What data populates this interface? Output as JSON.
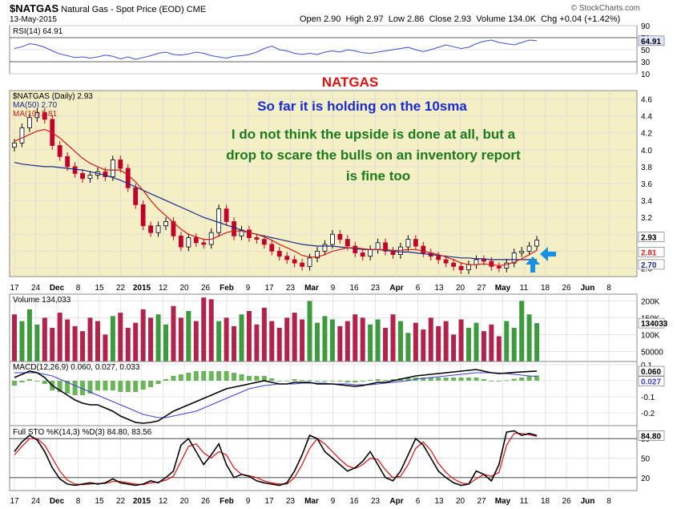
{
  "header": {
    "symbol": "$NATGAS",
    "name": "Natural Gas - Spot Price (EOD)",
    "exchange": "CME",
    "date": "13-May-2015",
    "brand": "© StockCharts.com",
    "open_label": "Open",
    "open": "2.90",
    "high_label": "High",
    "high": "2.97",
    "low_label": "Low",
    "low": "2.86",
    "close_label": "Close",
    "close": "2.93",
    "volume_label": "Volume",
    "volume": "134.0K",
    "chg_label": "Chg",
    "chg": "+0.04 (+1.42%)"
  },
  "annotations": {
    "title": "NATGAS",
    "line1": "So far it is holding on the 10sma",
    "line2": "I do not think the upside is done at all, but a",
    "line3": "drop to scare the bulls on an inventory report",
    "line4": "is fine too"
  },
  "colors": {
    "rsi_line": "#3a52c8",
    "price_up": "#000000",
    "price_down": "#c0002a",
    "ma50": "#1c2a8c",
    "ma10": "#d11a1a",
    "vol_up": "#3e9a3e",
    "vol_down": "#b0234a",
    "macd": "#000000",
    "macd_signal": "#4040d0",
    "macd_hist": "#6ab45a",
    "sto_k": "#000000",
    "sto_d": "#e01010",
    "arrow": "#1b8fe0",
    "price_bg": "#f4efc4"
  },
  "chart_data": [
    {
      "type": "line",
      "panel": "rsi",
      "legend": "RSI(14) 64.91",
      "y_ticks": [
        "90",
        "70",
        "50",
        "30",
        "10"
      ],
      "last_value_label": "64.91",
      "ylim": [
        10,
        90
      ],
      "reference_lines": [
        70,
        30
      ],
      "values": [
        52,
        55,
        60,
        58,
        54,
        48,
        43,
        40,
        37,
        38,
        36,
        38,
        41,
        39,
        35,
        38,
        34,
        37,
        40,
        44,
        46,
        42,
        41,
        43,
        46,
        44,
        40,
        38,
        36,
        39,
        40,
        42,
        46,
        52,
        56,
        50,
        48,
        44,
        42,
        44,
        42,
        46,
        48,
        46,
        50,
        48,
        45,
        44,
        46,
        48,
        50,
        52,
        54,
        50,
        47,
        50,
        54,
        58,
        55,
        52,
        54,
        60,
        64,
        66,
        62,
        60,
        58,
        62,
        66,
        64.91
      ]
    },
    {
      "type": "candlestick",
      "panel": "price",
      "legend": [
        {
          "name": "$NATGAS (Daily) 2.93"
        },
        {
          "name": "MA(50) 2.70"
        },
        {
          "name": "MA(10) 2.81"
        }
      ],
      "y_ticks": [
        "4.6",
        "4.4",
        "4.2",
        "4.0",
        "3.8",
        "3.6",
        "3.4",
        "3.2",
        "3.0",
        "2.8",
        "2.6"
      ],
      "last_value_labels": [
        "2.93",
        "2.81",
        "2.70"
      ],
      "ylim": [
        2.5,
        4.7
      ],
      "x_ticks": [
        "17",
        "24",
        "Dec",
        "8",
        "15",
        "22",
        "2015",
        "12",
        "20",
        "26",
        "Feb",
        "9",
        "17",
        "23",
        "Mar",
        "9",
        "16",
        "23",
        "Apr",
        "6",
        "13",
        "20",
        "27",
        "May",
        "11",
        "18",
        "26",
        "Jun",
        "8"
      ],
      "close": [
        4.08,
        4.26,
        4.38,
        4.44,
        4.36,
        4.05,
        3.92,
        3.8,
        3.72,
        3.66,
        3.7,
        3.74,
        3.68,
        3.88,
        3.78,
        3.55,
        3.35,
        3.1,
        3.02,
        3.1,
        3.15,
        2.98,
        2.85,
        2.96,
        2.9,
        2.88,
        3.02,
        3.3,
        3.15,
        2.98,
        3.05,
        2.96,
        2.94,
        2.88,
        2.8,
        2.74,
        2.7,
        2.66,
        2.62,
        2.72,
        2.8,
        2.88,
        3.0,
        2.94,
        2.86,
        2.78,
        2.74,
        2.82,
        2.9,
        2.8,
        2.76,
        2.85,
        2.94,
        2.86,
        2.78,
        2.74,
        2.7,
        2.66,
        2.62,
        2.58,
        2.64,
        2.7,
        2.68,
        2.62,
        2.6,
        2.66,
        2.78,
        2.8,
        2.86,
        2.93
      ],
      "ma50": [
        3.85,
        3.83,
        3.82,
        3.81,
        3.8,
        3.8,
        3.79,
        3.78,
        3.77,
        3.76,
        3.74,
        3.72,
        3.7,
        3.67,
        3.64,
        3.6,
        3.56,
        3.52,
        3.48,
        3.44,
        3.4,
        3.36,
        3.32,
        3.28,
        3.24,
        3.2,
        3.17,
        3.14,
        3.11,
        3.08,
        3.05,
        3.02,
        3.0,
        2.98,
        2.96,
        2.94,
        2.92,
        2.9,
        2.88,
        2.87,
        2.86,
        2.86,
        2.86,
        2.85,
        2.84,
        2.83,
        2.82,
        2.82,
        2.82,
        2.81,
        2.8,
        2.79,
        2.79,
        2.78,
        2.77,
        2.76,
        2.75,
        2.74,
        2.73,
        2.72,
        2.72,
        2.71,
        2.71,
        2.7,
        2.7,
        2.7,
        2.7,
        2.7,
        2.7,
        2.7
      ],
      "ma10": [
        4.1,
        4.14,
        4.18,
        4.22,
        4.24,
        4.2,
        4.14,
        4.06,
        3.98,
        3.9,
        3.84,
        3.8,
        3.76,
        3.76,
        3.76,
        3.7,
        3.62,
        3.52,
        3.4,
        3.3,
        3.22,
        3.14,
        3.06,
        3.0,
        2.97,
        2.94,
        2.94,
        2.98,
        3.02,
        3.04,
        3.04,
        3.02,
        3.0,
        2.97,
        2.93,
        2.88,
        2.84,
        2.8,
        2.75,
        2.73,
        2.73,
        2.76,
        2.8,
        2.82,
        2.84,
        2.84,
        2.83,
        2.82,
        2.82,
        2.82,
        2.81,
        2.81,
        2.82,
        2.82,
        2.8,
        2.78,
        2.76,
        2.73,
        2.7,
        2.66,
        2.64,
        2.64,
        2.65,
        2.64,
        2.63,
        2.64,
        2.67,
        2.71,
        2.76,
        2.81
      ]
    },
    {
      "type": "bar",
      "panel": "volume",
      "legend": "Volume 134,033",
      "y_ticks": [
        "200K",
        "150K",
        "100K",
        "50000"
      ],
      "last_value_label": "134033",
      "ylim": [
        20000,
        220000
      ],
      "values": [
        160000,
        140000,
        175000,
        130000,
        150000,
        120000,
        165000,
        145000,
        125000,
        110000,
        150000,
        140000,
        100000,
        155000,
        165000,
        120000,
        135000,
        175000,
        150000,
        160000,
        130000,
        185000,
        150000,
        170000,
        140000,
        210000,
        205000,
        140000,
        150000,
        125000,
        160000,
        170000,
        130000,
        180000,
        140000,
        120000,
        150000,
        165000,
        145000,
        200000,
        135000,
        155000,
        145000,
        125000,
        140000,
        160000,
        150000,
        130000,
        145000,
        120000,
        160000,
        140000,
        105000,
        135000,
        115000,
        150000,
        125000,
        140000,
        100000,
        145000,
        120000,
        135000,
        110000,
        130000,
        95000,
        140000,
        120000,
        200000,
        160000,
        134033
      ],
      "up_days": [
        1,
        2,
        3,
        13,
        19,
        20,
        23,
        27,
        30,
        39,
        40,
        41,
        42,
        47,
        48,
        51,
        52,
        60,
        61,
        65,
        66,
        67,
        68,
        69
      ]
    },
    {
      "type": "line",
      "panel": "macd",
      "legend": "MACD(12,26,9) 0.060, 0.027, 0.033",
      "y_ticks": [
        "0.1",
        "0.0",
        "-0.1",
        "-0.2"
      ],
      "last_value_labels": [
        "0.060",
        "0.027"
      ],
      "ylim": [
        -0.28,
        0.12
      ],
      "macd": [
        0.02,
        0.04,
        0.06,
        0.05,
        0.02,
        -0.03,
        -0.06,
        -0.09,
        -0.12,
        -0.14,
        -0.15,
        -0.15,
        -0.17,
        -0.19,
        -0.22,
        -0.24,
        -0.26,
        -0.265,
        -0.26,
        -0.25,
        -0.22,
        -0.19,
        -0.17,
        -0.15,
        -0.13,
        -0.11,
        -0.09,
        -0.07,
        -0.05,
        -0.04,
        -0.03,
        -0.02,
        -0.01,
        0.0,
        -0.01,
        -0.02,
        -0.02,
        -0.01,
        -0.01,
        -0.01,
        -0.02,
        -0.02,
        -0.02,
        -0.025,
        -0.03,
        -0.035,
        -0.03,
        -0.02,
        -0.01,
        -0.01,
        0.0,
        0.01,
        0.02,
        0.03,
        0.035,
        0.04,
        0.045,
        0.05,
        0.055,
        0.06,
        0.065,
        0.07,
        0.06,
        0.05,
        0.045,
        0.048,
        0.052,
        0.055,
        0.058,
        0.06
      ],
      "signal": [
        0.05,
        0.05,
        0.05,
        0.05,
        0.04,
        0.03,
        0.01,
        -0.01,
        -0.03,
        -0.05,
        -0.07,
        -0.09,
        -0.11,
        -0.13,
        -0.15,
        -0.17,
        -0.19,
        -0.21,
        -0.22,
        -0.23,
        -0.23,
        -0.22,
        -0.21,
        -0.2,
        -0.19,
        -0.17,
        -0.15,
        -0.13,
        -0.11,
        -0.09,
        -0.07,
        -0.05,
        -0.04,
        -0.03,
        -0.025,
        -0.02,
        -0.02,
        -0.02,
        -0.015,
        -0.015,
        -0.015,
        -0.015,
        -0.02,
        -0.02,
        -0.02,
        -0.025,
        -0.025,
        -0.025,
        -0.02,
        -0.015,
        -0.01,
        -0.005,
        0.0,
        0.01,
        0.015,
        0.02,
        0.025,
        0.03,
        0.035,
        0.04,
        0.045,
        0.05,
        0.05,
        0.05,
        0.048,
        0.045,
        0.04,
        0.035,
        0.03,
        0.027
      ],
      "histogram": [
        -0.03,
        -0.01,
        0.01,
        0.0,
        -0.02,
        -0.06,
        -0.07,
        -0.08,
        -0.09,
        -0.09,
        -0.08,
        -0.06,
        -0.06,
        -0.06,
        -0.07,
        -0.07,
        -0.07,
        -0.055,
        -0.04,
        -0.02,
        0.01,
        0.03,
        0.04,
        0.05,
        0.06,
        0.06,
        0.06,
        0.06,
        0.06,
        0.05,
        0.04,
        0.03,
        0.03,
        0.03,
        0.015,
        0.0,
        0.0,
        0.01,
        0.005,
        0.005,
        -0.005,
        -0.005,
        0.0,
        -0.005,
        -0.01,
        -0.01,
        -0.005,
        0.005,
        0.01,
        0.005,
        0.01,
        0.015,
        0.02,
        0.02,
        0.02,
        0.02,
        0.02,
        0.02,
        0.02,
        0.02,
        0.02,
        0.02,
        0.01,
        0.0,
        -0.003,
        0.003,
        0.012,
        0.02,
        0.028,
        0.033
      ]
    },
    {
      "type": "line",
      "panel": "stochastic",
      "legend": "Full STO %K(14,3) %D(3) 84.80, 83.56",
      "y_ticks": [
        "80",
        "50",
        "20"
      ],
      "last_value_label": "84.80",
      "ylim": [
        0,
        100
      ],
      "reference_lines": [
        80,
        20
      ],
      "k": [
        60,
        75,
        85,
        78,
        60,
        35,
        18,
        10,
        8,
        10,
        12,
        10,
        12,
        18,
        12,
        10,
        8,
        10,
        15,
        12,
        20,
        30,
        70,
        80,
        60,
        40,
        55,
        72,
        40,
        20,
        25,
        22,
        15,
        12,
        10,
        8,
        12,
        30,
        55,
        85,
        80,
        60,
        50,
        40,
        30,
        35,
        45,
        60,
        40,
        20,
        15,
        30,
        55,
        80,
        70,
        50,
        30,
        20,
        12,
        8,
        10,
        30,
        25,
        15,
        40,
        90,
        92,
        85,
        88,
        84.8
      ],
      "d": [
        55,
        68,
        80,
        80,
        70,
        50,
        30,
        16,
        10,
        9,
        10,
        11,
        11,
        14,
        14,
        12,
        10,
        9,
        12,
        13,
        16,
        22,
        45,
        68,
        72,
        58,
        50,
        60,
        55,
        35,
        25,
        23,
        20,
        15,
        12,
        10,
        10,
        20,
        40,
        65,
        80,
        72,
        60,
        48,
        38,
        34,
        40,
        50,
        48,
        32,
        20,
        22,
        40,
        65,
        75,
        62,
        42,
        28,
        18,
        12,
        10,
        18,
        25,
        22,
        28,
        70,
        88,
        88,
        86,
        83.56
      ]
    }
  ]
}
